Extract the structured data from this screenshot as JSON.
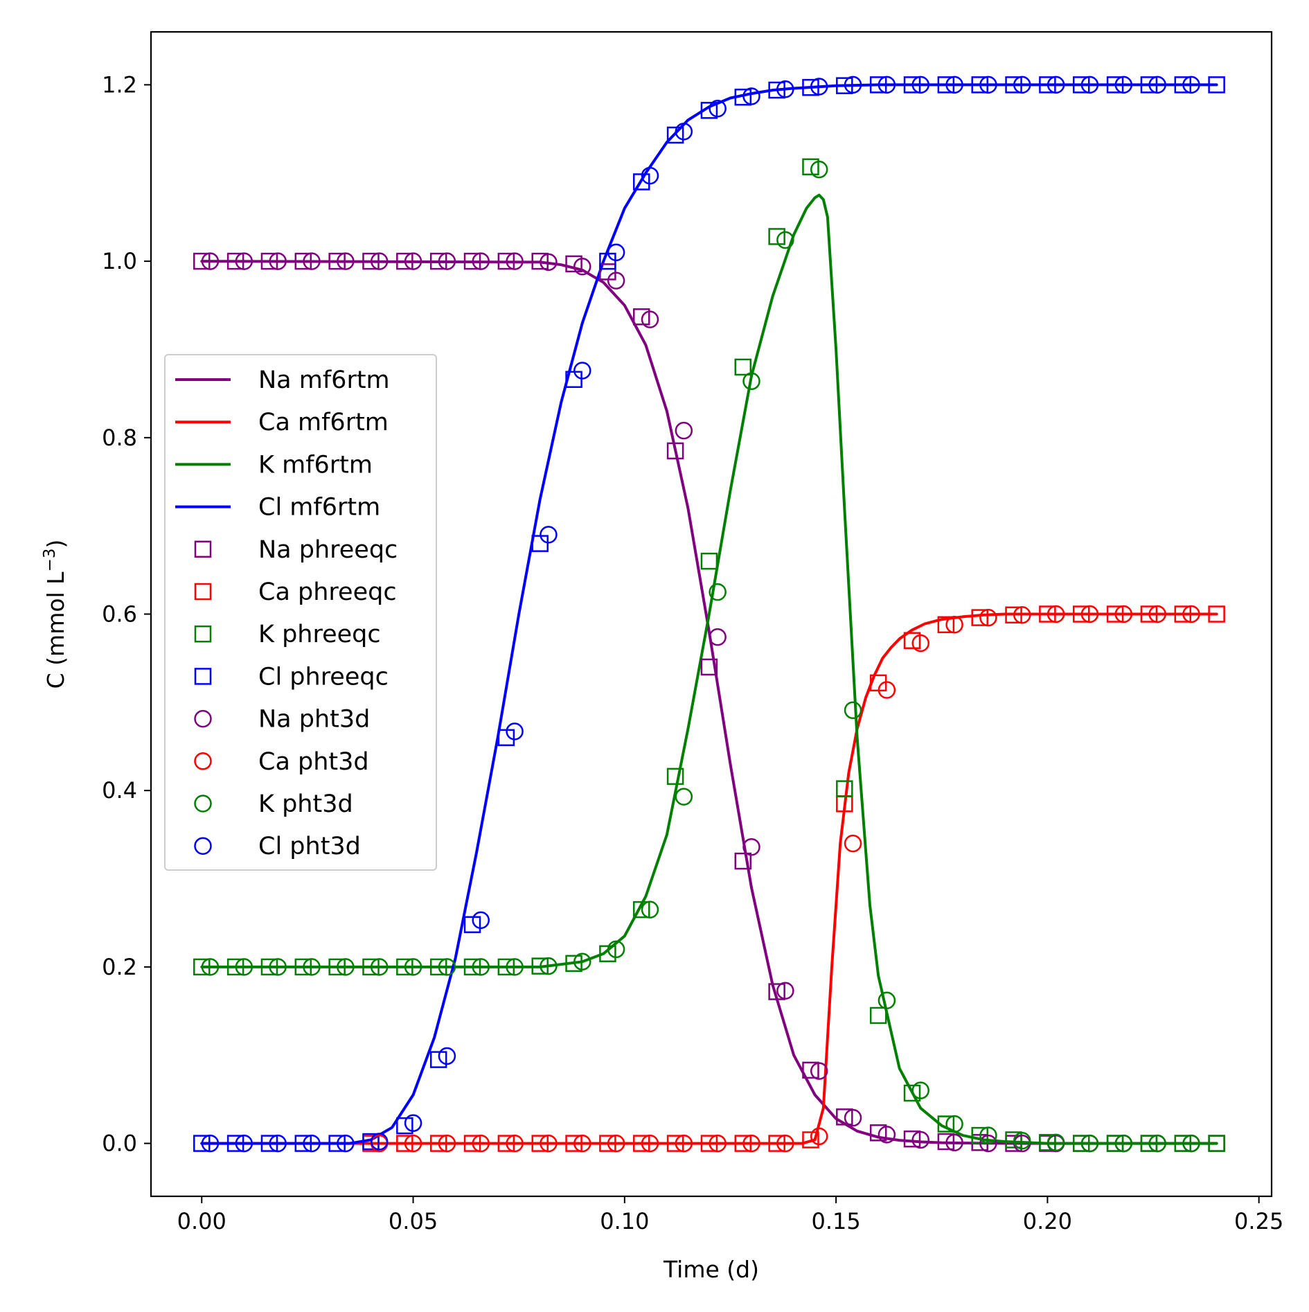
{
  "chart_data": {
    "type": "line",
    "title": "",
    "xlabel": "Time (d)",
    "ylabel_main": "C (mmol L",
    "ylabel_sup": "−3",
    "ylabel_close": ")",
    "xlim": [
      -0.012,
      0.253
    ],
    "ylim": [
      -0.06,
      1.26
    ],
    "xticks": [
      0.0,
      0.05,
      0.1,
      0.15,
      0.2,
      0.25
    ],
    "xtick_labels": [
      "0.00",
      "0.05",
      "0.10",
      "0.15",
      "0.20",
      "0.25"
    ],
    "yticks": [
      0.0,
      0.2,
      0.4,
      0.6,
      0.8,
      1.0,
      1.2
    ],
    "ytick_labels": [
      "0.0",
      "0.2",
      "0.4",
      "0.6",
      "0.8",
      "1.0",
      "1.2"
    ],
    "grid": false,
    "legend_position": "center-left",
    "series": [
      {
        "name": "Na mf6rtm",
        "kind": "line",
        "color": "#800080",
        "x": [
          0,
          0.08,
          0.085,
          0.09,
          0.095,
          0.1,
          0.105,
          0.11,
          0.115,
          0.12,
          0.125,
          0.13,
          0.135,
          0.14,
          0.145,
          0.15,
          0.155,
          0.16,
          0.165,
          0.17,
          0.175,
          0.18,
          0.19,
          0.2,
          0.24
        ],
        "y": [
          1.0,
          0.999,
          0.996,
          0.99,
          0.976,
          0.95,
          0.905,
          0.83,
          0.72,
          0.58,
          0.43,
          0.29,
          0.18,
          0.1,
          0.055,
          0.028,
          0.014,
          0.007,
          0.0035,
          0.0017,
          0.0008,
          0.0004,
          0.0001,
          0,
          0
        ]
      },
      {
        "name": "Ca mf6rtm",
        "kind": "line",
        "color": "#ff0000",
        "x": [
          0,
          0.142,
          0.145,
          0.147,
          0.149,
          0.151,
          0.153,
          0.155,
          0.157,
          0.159,
          0.161,
          0.163,
          0.165,
          0.168,
          0.171,
          0.175,
          0.18,
          0.185,
          0.19,
          0.2,
          0.24
        ],
        "y": [
          0,
          0,
          0.004,
          0.04,
          0.2,
          0.34,
          0.42,
          0.47,
          0.505,
          0.53,
          0.55,
          0.562,
          0.572,
          0.582,
          0.589,
          0.594,
          0.597,
          0.599,
          0.6,
          0.6,
          0.6
        ]
      },
      {
        "name": "K mf6rtm",
        "kind": "line",
        "color": "#008000",
        "x": [
          0,
          0.08,
          0.09,
          0.095,
          0.1,
          0.105,
          0.11,
          0.115,
          0.12,
          0.125,
          0.13,
          0.135,
          0.14,
          0.143,
          0.145,
          0.146,
          0.147,
          0.148,
          0.15,
          0.152,
          0.155,
          0.158,
          0.16,
          0.165,
          0.17,
          0.175,
          0.18,
          0.185,
          0.19,
          0.2,
          0.24
        ],
        "y": [
          0.2,
          0.2,
          0.206,
          0.215,
          0.235,
          0.28,
          0.35,
          0.47,
          0.6,
          0.74,
          0.87,
          0.96,
          1.03,
          1.06,
          1.072,
          1.075,
          1.07,
          1.05,
          0.9,
          0.72,
          0.46,
          0.27,
          0.19,
          0.085,
          0.04,
          0.02,
          0.009,
          0.004,
          0.002,
          0,
          0
        ]
      },
      {
        "name": "Cl mf6rtm",
        "kind": "line",
        "color": "#0000ff",
        "x": [
          0,
          0.035,
          0.04,
          0.045,
          0.05,
          0.055,
          0.06,
          0.065,
          0.07,
          0.075,
          0.08,
          0.085,
          0.09,
          0.095,
          0.1,
          0.105,
          0.11,
          0.115,
          0.12,
          0.125,
          0.13,
          0.135,
          0.14,
          0.15,
          0.16,
          0.24
        ],
        "y": [
          0,
          0,
          0.004,
          0.018,
          0.055,
          0.12,
          0.21,
          0.33,
          0.46,
          0.6,
          0.73,
          0.84,
          0.93,
          1.0,
          1.06,
          1.1,
          1.135,
          1.16,
          1.175,
          1.185,
          1.19,
          1.194,
          1.196,
          1.199,
          1.2,
          1.2
        ]
      },
      {
        "name": "Na phreeqc",
        "kind": "square",
        "color": "#800080",
        "x": [
          0,
          0.008,
          0.016,
          0.024,
          0.032,
          0.04,
          0.048,
          0.056,
          0.064,
          0.072,
          0.08,
          0.088,
          0.096,
          0.104,
          0.112,
          0.12,
          0.128,
          0.136,
          0.144,
          0.152,
          0.16,
          0.168,
          0.176,
          0.184,
          0.192,
          0.2,
          0.208,
          0.216,
          0.224,
          0.232,
          0.24
        ],
        "y": [
          1.0,
          1.0,
          1.0,
          1.0,
          1.0,
          1.0,
          1.0,
          1.0,
          1.0,
          1.0,
          1.0,
          0.997,
          0.988,
          0.937,
          0.785,
          0.54,
          0.32,
          0.172,
          0.083,
          0.03,
          0.012,
          0.005,
          0.002,
          0.001,
          0,
          0,
          0,
          0,
          0,
          0,
          0
        ]
      },
      {
        "name": "Ca phreeqc",
        "kind": "square",
        "color": "#ff0000",
        "x": [
          0.04,
          0.048,
          0.056,
          0.064,
          0.072,
          0.08,
          0.088,
          0.096,
          0.104,
          0.112,
          0.12,
          0.128,
          0.136,
          0.144,
          0.152,
          0.16,
          0.168,
          0.176,
          0.184,
          0.192,
          0.2,
          0.208,
          0.216,
          0.224,
          0.232,
          0.24
        ],
        "y": [
          0,
          0,
          0,
          0,
          0,
          0,
          0,
          0,
          0,
          0,
          0,
          0,
          0,
          0.004,
          0.385,
          0.522,
          0.57,
          0.588,
          0.596,
          0.599,
          0.6,
          0.6,
          0.6,
          0.6,
          0.6,
          0.6
        ]
      },
      {
        "name": "K phreeqc",
        "kind": "square",
        "color": "#008000",
        "x": [
          0,
          0.008,
          0.016,
          0.024,
          0.032,
          0.04,
          0.048,
          0.056,
          0.064,
          0.072,
          0.08,
          0.088,
          0.096,
          0.104,
          0.112,
          0.12,
          0.128,
          0.136,
          0.144,
          0.152,
          0.16,
          0.168,
          0.176,
          0.184,
          0.192,
          0.2,
          0.208,
          0.216,
          0.224,
          0.232,
          0.24
        ],
        "y": [
          0.2,
          0.2,
          0.2,
          0.2,
          0.2,
          0.2,
          0.2,
          0.2,
          0.2,
          0.2,
          0.201,
          0.204,
          0.215,
          0.265,
          0.416,
          0.66,
          0.88,
          1.028,
          1.107,
          0.402,
          0.145,
          0.057,
          0.022,
          0.009,
          0.004,
          0.001,
          0,
          0,
          0,
          0,
          0
        ]
      },
      {
        "name": "Cl phreeqc",
        "kind": "square",
        "color": "#0000ff",
        "x": [
          0,
          0.008,
          0.016,
          0.024,
          0.032,
          0.04,
          0.048,
          0.056,
          0.064,
          0.072,
          0.08,
          0.088,
          0.096,
          0.104,
          0.112,
          0.12,
          0.128,
          0.136,
          0.144,
          0.152,
          0.16,
          0.168,
          0.176,
          0.184,
          0.192,
          0.2,
          0.208,
          0.216,
          0.224,
          0.232,
          0.24
        ],
        "y": [
          0,
          0,
          0,
          0,
          0,
          0.002,
          0.02,
          0.095,
          0.248,
          0.46,
          0.68,
          0.866,
          1.0,
          1.09,
          1.143,
          1.171,
          1.186,
          1.194,
          1.197,
          1.199,
          1.2,
          1.2,
          1.2,
          1.2,
          1.2,
          1.2,
          1.2,
          1.2,
          1.2,
          1.2,
          1.2
        ]
      },
      {
        "name": "Na pht3d",
        "kind": "circle",
        "color": "#800080",
        "x": [
          0.002,
          0.01,
          0.018,
          0.026,
          0.034,
          0.042,
          0.05,
          0.058,
          0.066,
          0.074,
          0.082,
          0.09,
          0.098,
          0.106,
          0.114,
          0.122,
          0.13,
          0.138,
          0.146,
          0.154,
          0.162,
          0.17,
          0.178,
          0.186,
          0.194,
          0.202,
          0.21,
          0.218,
          0.226,
          0.234
        ],
        "y": [
          1.0,
          1.0,
          1.0,
          1.0,
          1.0,
          1.0,
          1.0,
          1.0,
          1.0,
          1.0,
          0.999,
          0.994,
          0.978,
          0.934,
          0.808,
          0.574,
          0.336,
          0.173,
          0.082,
          0.029,
          0.01,
          0.004,
          0.001,
          0,
          0,
          0,
          0,
          0,
          0,
          0
        ]
      },
      {
        "name": "Ca pht3d",
        "kind": "circle",
        "color": "#ff0000",
        "x": [
          0.042,
          0.05,
          0.058,
          0.066,
          0.074,
          0.082,
          0.09,
          0.098,
          0.106,
          0.114,
          0.122,
          0.13,
          0.138,
          0.146,
          0.154,
          0.162,
          0.17,
          0.178,
          0.186,
          0.194,
          0.202,
          0.21,
          0.218,
          0.226,
          0.234
        ],
        "y": [
          0,
          0,
          0,
          0,
          0,
          0,
          0,
          0,
          0,
          0,
          0,
          0,
          0,
          0.008,
          0.34,
          0.514,
          0.567,
          0.588,
          0.596,
          0.599,
          0.6,
          0.6,
          0.6,
          0.6,
          0.6
        ]
      },
      {
        "name": "K pht3d",
        "kind": "circle",
        "color": "#008000",
        "x": [
          0.002,
          0.01,
          0.018,
          0.026,
          0.034,
          0.042,
          0.05,
          0.058,
          0.066,
          0.074,
          0.082,
          0.09,
          0.098,
          0.106,
          0.114,
          0.122,
          0.13,
          0.138,
          0.146,
          0.154,
          0.162,
          0.17,
          0.178,
          0.186,
          0.194,
          0.202,
          0.21,
          0.218,
          0.226,
          0.234
        ],
        "y": [
          0.2,
          0.2,
          0.2,
          0.2,
          0.2,
          0.2,
          0.2,
          0.2,
          0.2,
          0.2,
          0.201,
          0.206,
          0.22,
          0.265,
          0.393,
          0.625,
          0.864,
          1.024,
          1.104,
          0.491,
          0.162,
          0.06,
          0.022,
          0.009,
          0.003,
          0.001,
          0,
          0,
          0,
          0
        ]
      },
      {
        "name": "Cl pht3d",
        "kind": "circle",
        "color": "#0000ff",
        "x": [
          0.002,
          0.01,
          0.018,
          0.026,
          0.034,
          0.042,
          0.05,
          0.058,
          0.066,
          0.074,
          0.082,
          0.09,
          0.098,
          0.106,
          0.114,
          0.122,
          0.13,
          0.138,
          0.146,
          0.154,
          0.162,
          0.17,
          0.178,
          0.186,
          0.194,
          0.202,
          0.21,
          0.218,
          0.226,
          0.234
        ],
        "y": [
          0,
          0,
          0,
          0,
          0,
          0.002,
          0.023,
          0.099,
          0.253,
          0.467,
          0.69,
          0.876,
          1.01,
          1.097,
          1.147,
          1.173,
          1.187,
          1.195,
          1.198,
          1.2,
          1.2,
          1.2,
          1.2,
          1.2,
          1.2,
          1.2,
          1.2,
          1.2,
          1.2,
          1.2
        ]
      }
    ]
  }
}
